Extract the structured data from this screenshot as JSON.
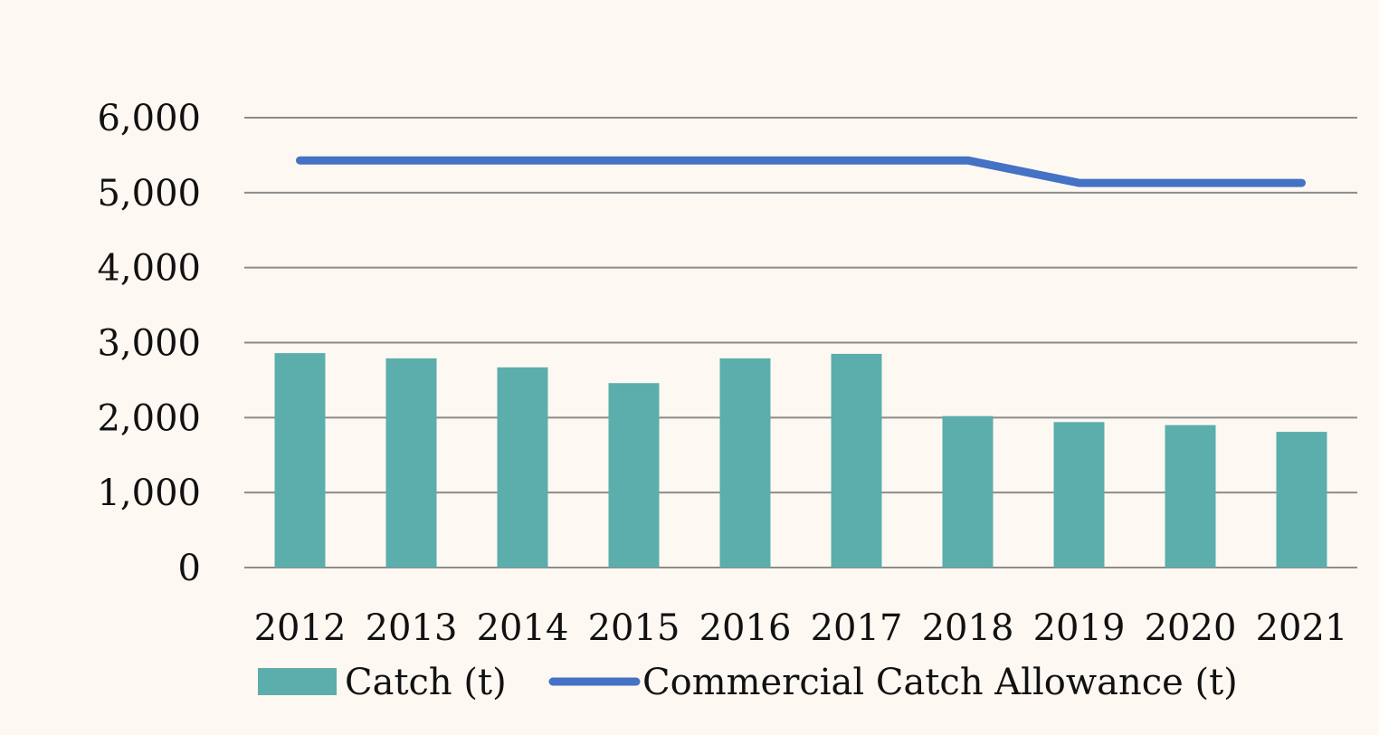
{
  "chart_data": {
    "type": "bar",
    "categories": [
      "2012",
      "2013",
      "2014",
      "2015",
      "2016",
      "2017",
      "2018",
      "2019",
      "2020",
      "2021"
    ],
    "series": [
      {
        "name": "Catch (t)",
        "type": "bar",
        "color": "#5baeab",
        "values": [
          2860,
          2790,
          2670,
          2460,
          2790,
          2850,
          2020,
          1940,
          1900,
          1810
        ]
      },
      {
        "name": "Commercial Catch Allowance (t)",
        "type": "line",
        "color": "#4472c4",
        "values": [
          5430,
          5430,
          5430,
          5430,
          5430,
          5430,
          5430,
          5130,
          5130,
          5130
        ]
      }
    ],
    "title": "",
    "xlabel": "",
    "ylabel": "",
    "ylim": [
      0,
      6000
    ],
    "yticks": [
      "0",
      "1,000",
      "2,000",
      "3,000",
      "4,000",
      "5,000",
      "6,000"
    ],
    "grid": true,
    "legend_position": "bottom"
  },
  "colors": {
    "background": "#fdf8f2",
    "gridline": "#8c8c8c",
    "text": "#111111"
  }
}
